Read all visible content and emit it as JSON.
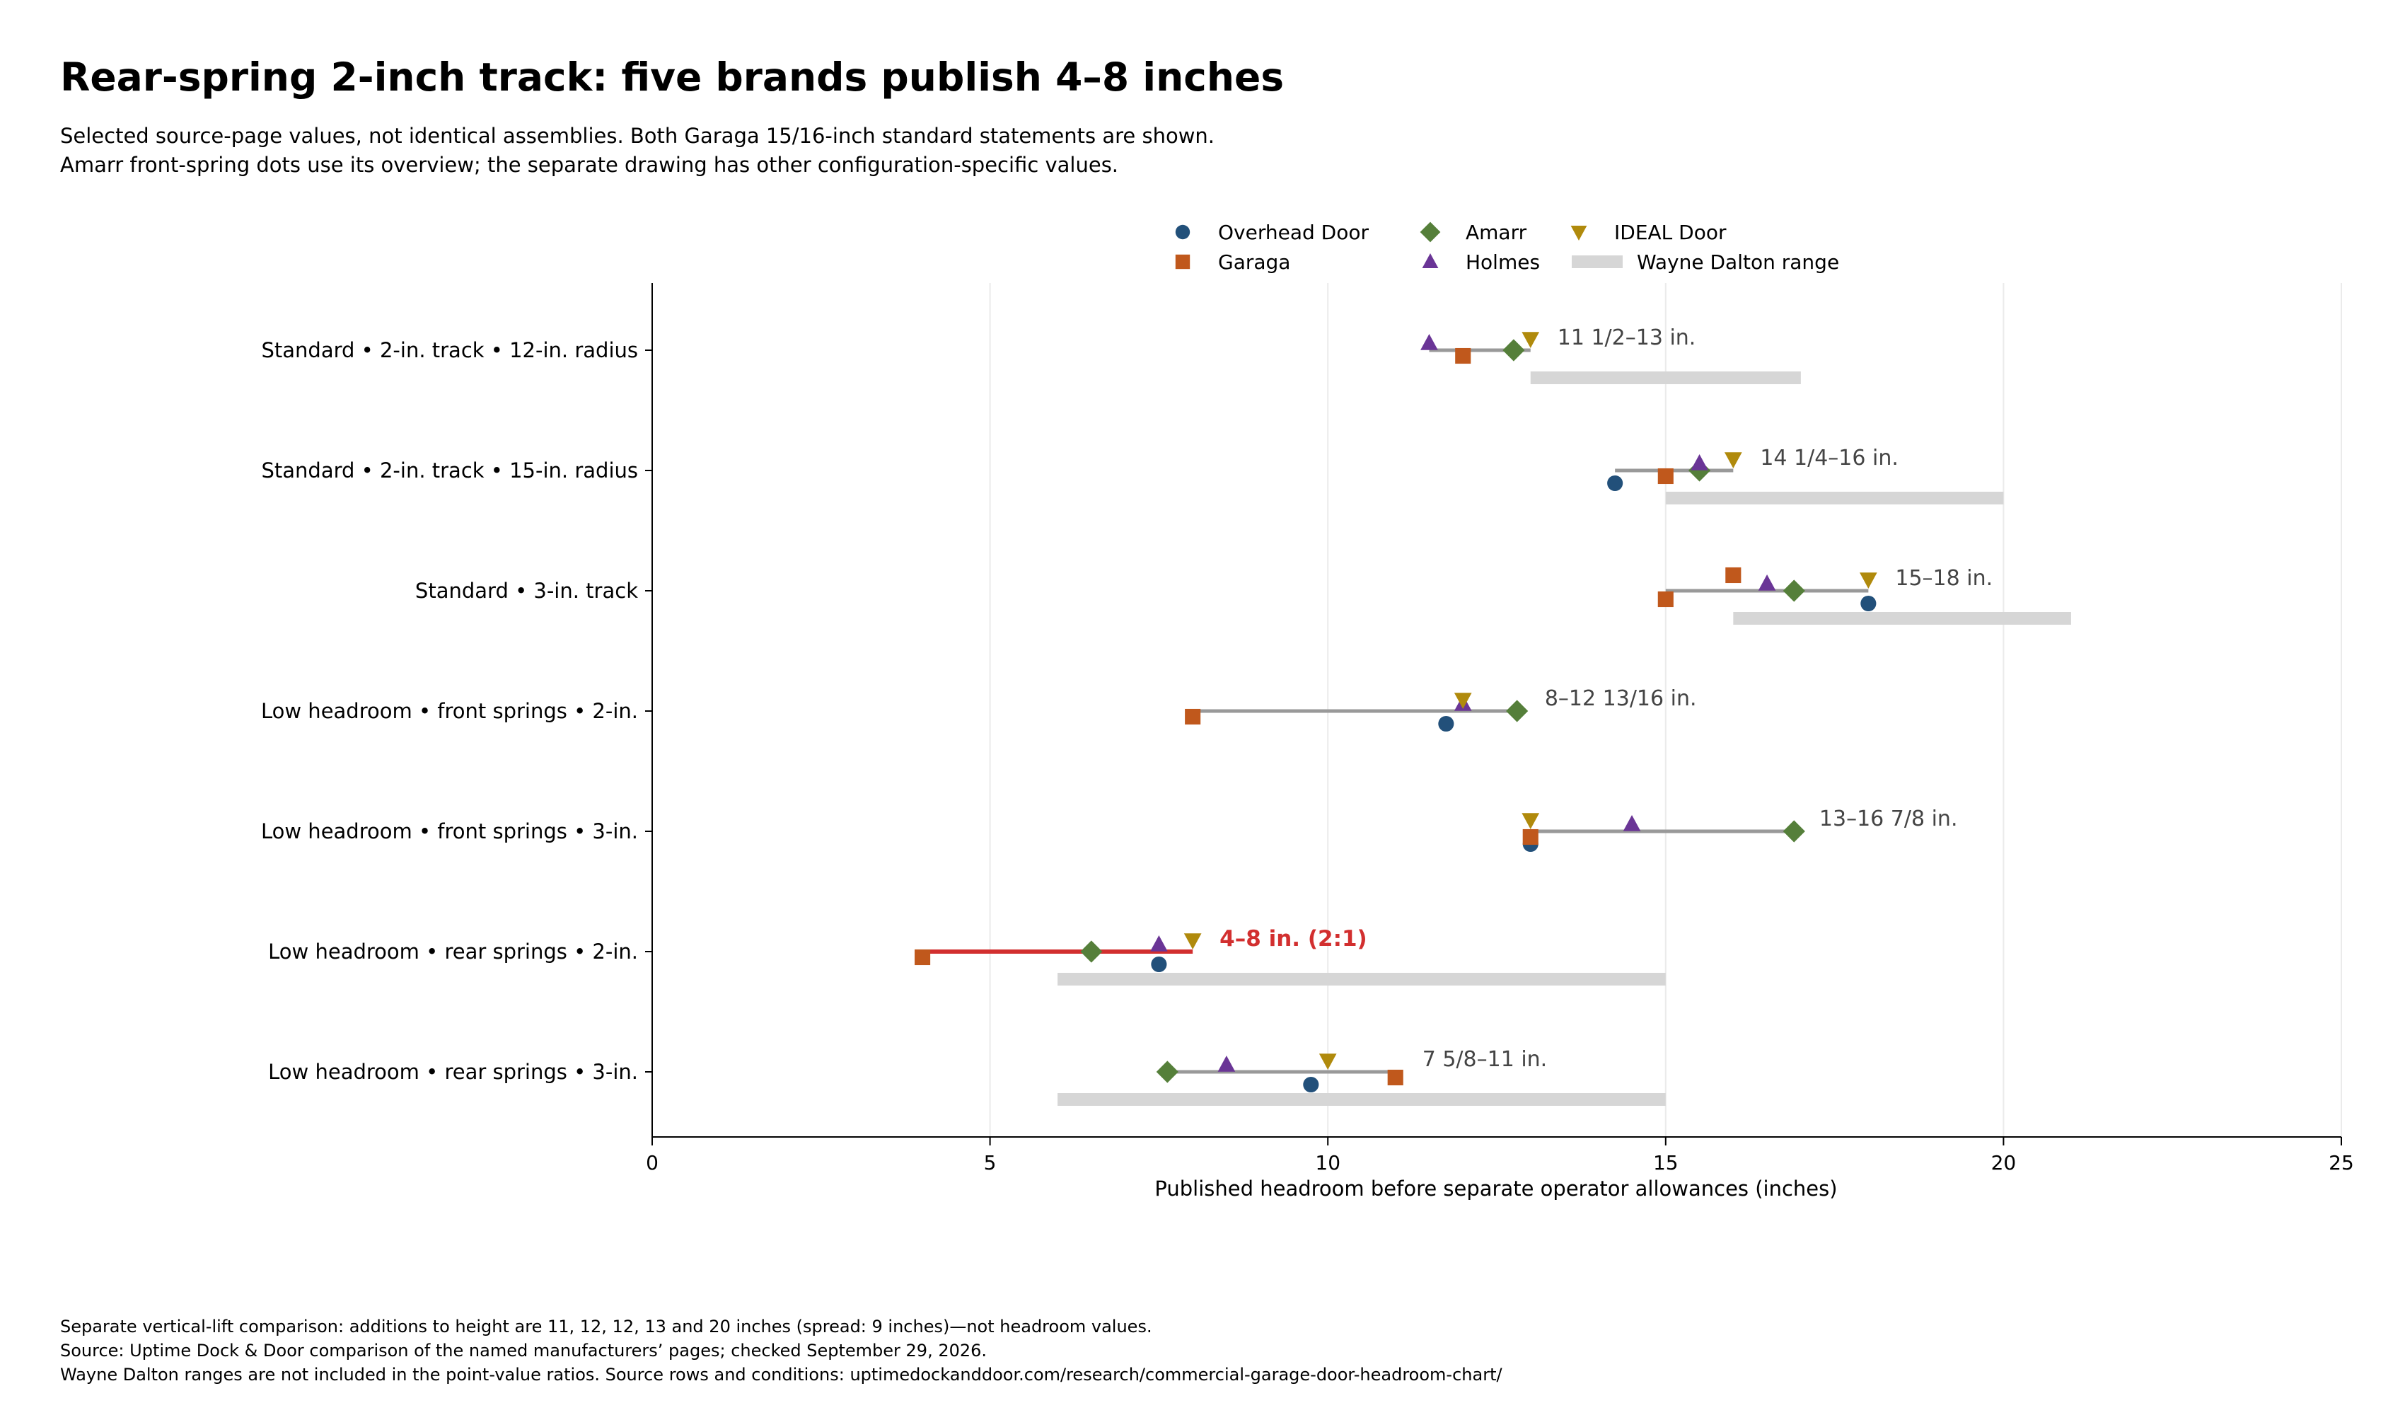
{
  "chart_data": {
    "type": "scatter",
    "title": "Rear-spring 2-inch track: five brands publish 4–8 inches",
    "subtitle": [
      "Selected source-page values, not identical assemblies. Both Garaga 15/16-inch standard statements are shown.",
      "Amarr front-spring dots use its overview; the separate drawing has other configuration-specific values."
    ],
    "xlabel": "Published headroom before separate operator allowances (inches)",
    "ylabel": "",
    "xlim": [
      0,
      25
    ],
    "xticks": [
      0,
      5,
      10,
      15,
      20,
      25
    ],
    "grid": "vertical",
    "legend_position": "top-center",
    "categories": [
      "Standard • 2-in. track • 12-in. radius",
      "Standard • 2-in. track • 15-in. radius",
      "Standard • 3-in. track",
      "Low headroom • front springs • 2-in.",
      "Low headroom • front springs • 3-in.",
      "Low headroom • rear springs • 2-in.",
      "Low headroom • rear springs • 3-in."
    ],
    "series": [
      {
        "name": "Overhead Door",
        "marker": "circle",
        "color": "#22507a",
        "points": [
          {
            "row": 1,
            "x": 14.25
          },
          {
            "row": 2,
            "x": 18
          },
          {
            "row": 3,
            "x": 11.75
          },
          {
            "row": 4,
            "x": 13
          },
          {
            "row": 5,
            "x": 7.5
          },
          {
            "row": 6,
            "x": 9.75
          }
        ]
      },
      {
        "name": "Garaga",
        "marker": "square",
        "color": "#c0581c",
        "points": [
          {
            "row": 0,
            "x": 12
          },
          {
            "row": 1,
            "x": 15
          },
          {
            "row": 2,
            "x": 15
          },
          {
            "row": 2,
            "x": 16
          },
          {
            "row": 3,
            "x": 8
          },
          {
            "row": 4,
            "x": 13
          },
          {
            "row": 5,
            "x": 4
          },
          {
            "row": 6,
            "x": 11
          }
        ]
      },
      {
        "name": "Amarr",
        "marker": "diamond",
        "color": "#557f3a",
        "points": [
          {
            "row": 0,
            "x": 12.75
          },
          {
            "row": 1,
            "x": 15.5
          },
          {
            "row": 2,
            "x": 16.9
          },
          {
            "row": 3,
            "x": 12.8
          },
          {
            "row": 4,
            "x": 16.9
          },
          {
            "row": 5,
            "x": 6.5
          },
          {
            "row": 6,
            "x": 7.625
          }
        ]
      },
      {
        "name": "Holmes",
        "marker": "triangle-up",
        "color": "#6a3596",
        "points": [
          {
            "row": 0,
            "x": 11.5
          },
          {
            "row": 1,
            "x": 15.5
          },
          {
            "row": 2,
            "x": 16.5
          },
          {
            "row": 3,
            "x": 12
          },
          {
            "row": 4,
            "x": 14.5
          },
          {
            "row": 5,
            "x": 7.5
          },
          {
            "row": 6,
            "x": 8.5
          }
        ]
      },
      {
        "name": "IDEAL Door",
        "marker": "triangle-down",
        "color": "#b08a0c",
        "points": [
          {
            "row": 0,
            "x": 13
          },
          {
            "row": 1,
            "x": 16
          },
          {
            "row": 2,
            "x": 18
          },
          {
            "row": 3,
            "x": 12
          },
          {
            "row": 4,
            "x": 13
          },
          {
            "row": 5,
            "x": 8
          },
          {
            "row": 6,
            "x": 10
          }
        ]
      }
    ],
    "spread_lines": [
      {
        "row": 0,
        "x0": 11.5,
        "x1": 13,
        "label": "11 1/2–13 in.",
        "highlight": false
      },
      {
        "row": 1,
        "x0": 14.25,
        "x1": 16,
        "label": "14 1/4–16 in.",
        "highlight": false
      },
      {
        "row": 2,
        "x0": 15,
        "x1": 18,
        "label": "15–18 in.",
        "highlight": false
      },
      {
        "row": 3,
        "x0": 8,
        "x1": 12.8125,
        "label": "8–12 13/16 in.",
        "highlight": false
      },
      {
        "row": 4,
        "x0": 13,
        "x1": 16.875,
        "label": "13–16 7/8 in.",
        "highlight": false
      },
      {
        "row": 5,
        "x0": 4,
        "x1": 8,
        "label": "4–8 in.  (2:1)",
        "highlight": true
      },
      {
        "row": 6,
        "x0": 7.625,
        "x1": 11,
        "label": "7 5/8–11 in.",
        "highlight": false
      }
    ],
    "range_bars": {
      "name": "Wayne Dalton range",
      "color": "#d6d6d6",
      "items": [
        {
          "row": 0,
          "x0": 13,
          "x1": 17
        },
        {
          "row": 1,
          "x0": 15,
          "x1": 20
        },
        {
          "row": 2,
          "x0": 16,
          "x1": 21
        },
        {
          "row": 5,
          "x0": 6,
          "x1": 15
        },
        {
          "row": 6,
          "x0": 6,
          "x1": 15
        }
      ]
    },
    "colors": {
      "spread": "#999999",
      "highlight": "#d22f2f",
      "label": "#444444",
      "grid": "#ebebeb"
    }
  },
  "footer": [
    "Separate vertical-lift comparison: additions to height are 11, 12, 12, 13 and 20 inches (spread: 9 inches)—not headroom values.",
    "Source: Uptime Dock & Door comparison of the named manufacturers’ pages; checked September 29, 2026.",
    "Wayne Dalton ranges are not included in the point-value ratios. Source rows and conditions: uptimedockanddoor.com/research/commercial-garage-door-headroom-chart/"
  ]
}
